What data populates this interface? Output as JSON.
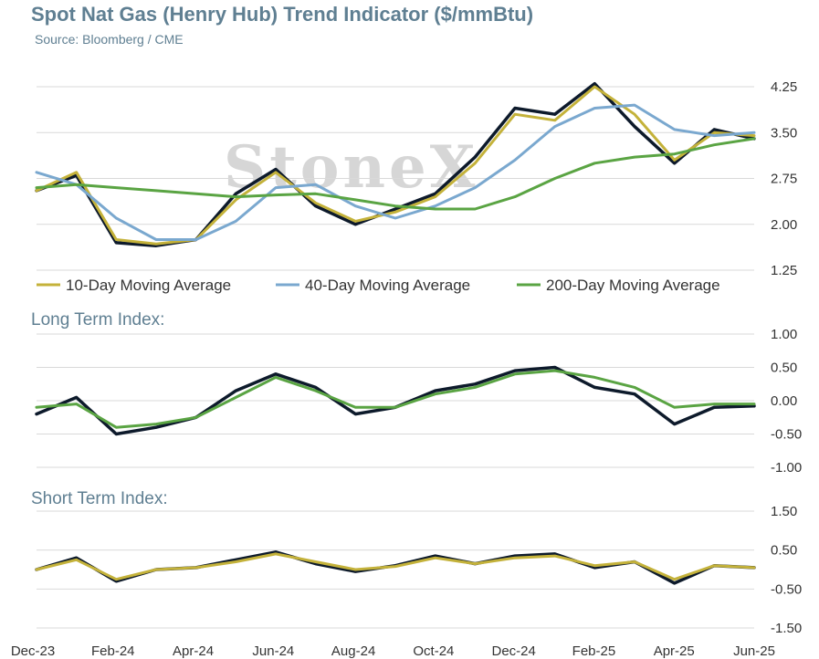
{
  "title": "Spot Nat Gas (Henry Hub) Trend Indicator ($/mmBtu)",
  "source": "Source: Bloomberg / CME",
  "watermark": "StoneX",
  "colors": {
    "price": "#0d1a2b",
    "ma10": "#c4b23a",
    "ma40": "#7aa8cf",
    "ma200": "#5aa443",
    "title": "#5f7f92",
    "grid": "#d9d9d9"
  },
  "chart_data": [
    {
      "type": "line",
      "panel": "price",
      "title": "",
      "ylim": [
        1.25,
        4.25
      ],
      "yticks": [
        "4.25",
        "3.50",
        "2.75",
        "2.00",
        "1.25"
      ],
      "x_labels": [
        "Dec-23",
        "Feb-24",
        "Apr-24",
        "Jun-24",
        "Aug-24",
        "Oct-24",
        "Dec-24",
        "Feb-25",
        "Apr-25",
        "Jun-25"
      ],
      "x": [
        "Dec-23",
        "Jan-24",
        "Feb-24",
        "Mar-24",
        "Apr-24",
        "May-24",
        "Jun-24",
        "Jul-24",
        "Aug-24",
        "Sep-24",
        "Oct-24",
        "Nov-24",
        "Dec-24",
        "Jan-25",
        "Feb-25",
        "Mar-25",
        "Apr-25",
        "May-25",
        "Jun-25"
      ],
      "series": [
        {
          "name": "",
          "color_key": "price",
          "values": [
            2.55,
            2.8,
            1.7,
            1.65,
            1.75,
            2.5,
            2.9,
            2.3,
            2.0,
            2.25,
            2.5,
            3.1,
            3.9,
            3.8,
            4.3,
            3.6,
            3.0,
            3.55,
            3.4
          ]
        },
        {
          "name": "10-Day Moving Average",
          "color_key": "ma10",
          "values": [
            2.55,
            2.85,
            1.75,
            1.68,
            1.75,
            2.4,
            2.85,
            2.35,
            2.05,
            2.2,
            2.45,
            3.0,
            3.8,
            3.7,
            4.25,
            3.8,
            3.05,
            3.5,
            3.45
          ]
        },
        {
          "name": "40-Day Moving Average",
          "color_key": "ma40",
          "values": [
            2.85,
            2.65,
            2.1,
            1.75,
            1.75,
            2.05,
            2.6,
            2.65,
            2.3,
            2.1,
            2.3,
            2.6,
            3.05,
            3.6,
            3.9,
            3.95,
            3.55,
            3.45,
            3.5
          ]
        },
        {
          "name": "200-Day Moving Average",
          "color_key": "ma200",
          "values": [
            2.6,
            2.65,
            2.6,
            2.55,
            2.5,
            2.45,
            2.48,
            2.5,
            2.4,
            2.3,
            2.25,
            2.25,
            2.45,
            2.75,
            3.0,
            3.1,
            3.15,
            3.3,
            3.4
          ]
        }
      ],
      "legend": "bottom"
    },
    {
      "type": "line",
      "panel": "long",
      "title": "Long Term Index:",
      "ylim": [
        -1.0,
        1.0
      ],
      "yticks": [
        "1.00",
        "0.50",
        "0.00",
        "-0.50",
        "-1.00"
      ],
      "x": [
        "Dec-23",
        "Jan-24",
        "Feb-24",
        "Mar-24",
        "Apr-24",
        "May-24",
        "Jun-24",
        "Jul-24",
        "Aug-24",
        "Sep-24",
        "Oct-24",
        "Nov-24",
        "Dec-24",
        "Jan-25",
        "Feb-25",
        "Mar-25",
        "Apr-25",
        "May-25",
        "Jun-25"
      ],
      "series": [
        {
          "name": "",
          "color_key": "price",
          "values": [
            -0.2,
            0.05,
            -0.5,
            -0.4,
            -0.25,
            0.15,
            0.4,
            0.2,
            -0.2,
            -0.1,
            0.15,
            0.25,
            0.45,
            0.5,
            0.2,
            0.1,
            -0.35,
            -0.1,
            -0.08
          ]
        },
        {
          "name": "",
          "color_key": "ma200",
          "values": [
            -0.1,
            -0.05,
            -0.4,
            -0.35,
            -0.25,
            0.05,
            0.35,
            0.15,
            -0.1,
            -0.1,
            0.1,
            0.2,
            0.4,
            0.45,
            0.35,
            0.2,
            -0.1,
            -0.05,
            -0.05
          ]
        }
      ]
    },
    {
      "type": "line",
      "panel": "short",
      "title": "Short Term Index:",
      "ylim": [
        -1.5,
        1.5
      ],
      "yticks": [
        "1.50",
        "0.50",
        "-0.50",
        "-1.50"
      ],
      "x": [
        "Dec-23",
        "Jan-24",
        "Feb-24",
        "Mar-24",
        "Apr-24",
        "May-24",
        "Jun-24",
        "Jul-24",
        "Aug-24",
        "Sep-24",
        "Oct-24",
        "Nov-24",
        "Dec-24",
        "Jan-25",
        "Feb-25",
        "Mar-25",
        "Apr-25",
        "May-25",
        "Jun-25"
      ],
      "series": [
        {
          "name": "",
          "color_key": "price",
          "values": [
            0.0,
            0.3,
            -0.3,
            0.0,
            0.05,
            0.25,
            0.45,
            0.15,
            -0.05,
            0.1,
            0.35,
            0.15,
            0.35,
            0.4,
            0.05,
            0.2,
            -0.35,
            0.1,
            0.05
          ]
        },
        {
          "name": "",
          "color_key": "ma10",
          "values": [
            0.0,
            0.25,
            -0.25,
            0.0,
            0.05,
            0.2,
            0.4,
            0.2,
            0.0,
            0.08,
            0.3,
            0.15,
            0.3,
            0.35,
            0.1,
            0.2,
            -0.25,
            0.1,
            0.05
          ]
        }
      ]
    }
  ]
}
